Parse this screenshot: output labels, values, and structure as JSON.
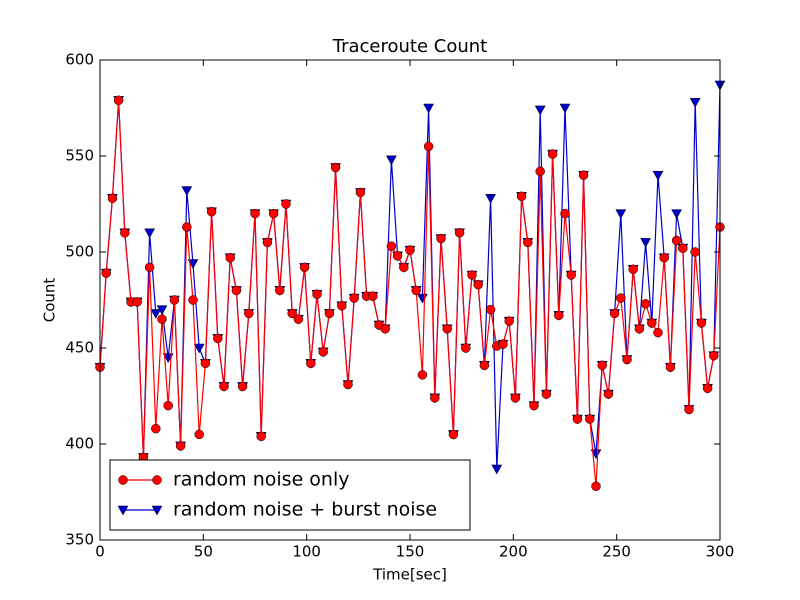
{
  "chart_data": {
    "type": "line",
    "title": "Traceroute Count",
    "x_label": "Time[sec]",
    "y_label": "Count",
    "x": [
      0,
      3,
      6,
      9,
      12,
      15,
      18,
      21,
      24,
      27,
      30,
      33,
      36,
      39,
      42,
      45,
      48,
      51,
      54,
      57,
      60,
      63,
      66,
      69,
      72,
      75,
      78,
      81,
      84,
      87,
      90,
      93,
      96,
      99,
      102,
      105,
      108,
      111,
      114,
      117,
      120,
      123,
      126,
      129,
      132,
      135,
      138,
      141,
      144,
      147,
      150,
      153,
      156,
      159,
      162,
      165,
      168,
      171,
      174,
      177,
      180,
      183,
      186,
      189,
      192,
      195,
      198,
      201,
      204,
      207,
      210,
      213,
      216,
      219,
      222,
      225,
      228,
      231,
      234,
      237,
      240,
      243,
      246,
      249,
      252,
      255,
      258,
      261,
      264,
      267,
      270,
      273,
      276,
      279,
      282,
      285,
      288,
      291,
      294,
      297,
      300
    ],
    "series": [
      {
        "name": "random noise + burst noise",
        "color": "#0000cc",
        "marker": "v",
        "values": [
          440,
          489,
          528,
          579,
          510,
          474,
          474,
          393,
          510,
          468,
          470,
          445,
          475,
          399,
          532,
          494,
          450,
          442,
          521,
          455,
          430,
          497,
          480,
          430,
          468,
          520,
          404,
          505,
          520,
          480,
          525,
          468,
          465,
          492,
          442,
          478,
          448,
          468,
          544,
          472,
          431,
          476,
          531,
          477,
          477,
          462,
          460,
          548,
          498,
          492,
          501,
          480,
          476,
          575,
          424,
          507,
          460,
          405,
          510,
          450,
          488,
          483,
          441,
          528,
          387,
          452,
          464,
          424,
          529,
          505,
          420,
          574,
          426,
          551,
          467,
          575,
          488,
          413,
          540,
          413,
          395,
          441,
          426,
          468,
          520,
          444,
          491,
          460,
          505,
          463,
          540,
          497,
          440,
          520,
          502,
          418,
          578,
          463,
          429,
          446,
          587
        ]
      },
      {
        "name": "random noise only",
        "color": "#ff0000",
        "marker": "o",
        "values": [
          440,
          489,
          528,
          579,
          510,
          474,
          474,
          393,
          492,
          408,
          465,
          420,
          475,
          399,
          513,
          475,
          405,
          442,
          521,
          455,
          430,
          497,
          480,
          430,
          468,
          520,
          404,
          505,
          520,
          480,
          525,
          468,
          465,
          492,
          442,
          478,
          448,
          468,
          544,
          472,
          431,
          476,
          531,
          477,
          477,
          462,
          460,
          503,
          498,
          492,
          501,
          480,
          436,
          555,
          424,
          507,
          460,
          405,
          510,
          450,
          488,
          483,
          441,
          470,
          451,
          452,
          464,
          424,
          529,
          505,
          420,
          542,
          426,
          551,
          467,
          520,
          488,
          413,
          540,
          413,
          378,
          441,
          426,
          468,
          476,
          444,
          491,
          460,
          473,
          463,
          458,
          497,
          440,
          506,
          502,
          418,
          500,
          463,
          429,
          446,
          513
        ]
      }
    ],
    "legend_order": [
      1,
      0
    ],
    "xlim": [
      0,
      300
    ],
    "xticks": [
      0,
      50,
      100,
      150,
      200,
      250,
      300
    ],
    "ylim": [
      350,
      600
    ],
    "yticks": [
      350,
      400,
      450,
      500,
      550,
      600
    ],
    "legend": "lower left"
  }
}
